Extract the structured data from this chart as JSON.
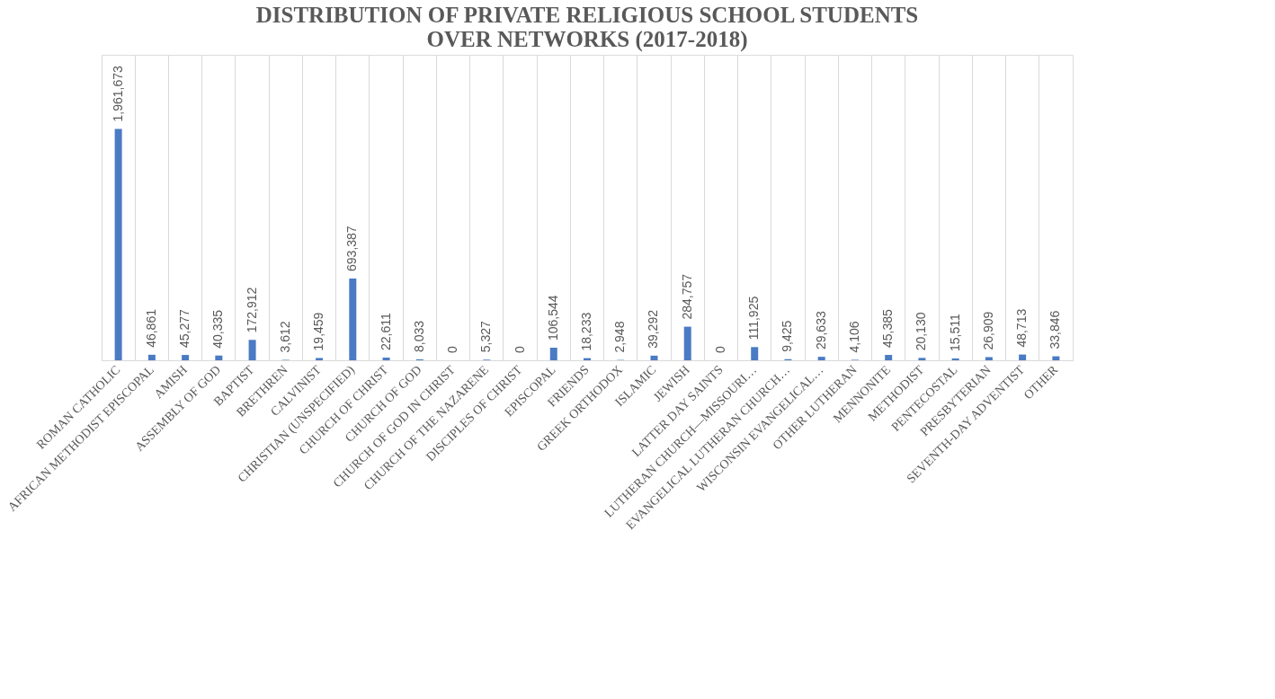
{
  "chart_data": {
    "type": "bar",
    "title": "DISTRIBUTION OF PRIVATE RELIGIOUS SCHOOL STUDENTS\nOVER NETWORKS (2017-2018)",
    "categories": [
      "ROMAN CATHOLIC",
      "AFRICAN METHODIST EPISCOPAL",
      "AMISH",
      "ASSEMBLY OF GOD",
      "BAPTIST",
      "BRETHREN",
      "CALVINIST",
      "CHRISTIAN (UNSPECIFIED)",
      "CHURCH OF CHRIST",
      "CHURCH OF GOD",
      "CHURCH OF GOD IN CHRIST",
      "CHURCH OF THE NAZARENE",
      "DISCIPLES OF CHRIST",
      "EPISCOPAL",
      "FRIENDS",
      "GREEK ORTHODOX",
      "ISLAMIC",
      "JEWISH",
      "LATTER DAY SAINTS",
      "LUTHERAN CHURCH—MISSOURI…",
      "EVANGELICAL LUTHERAN CHURCH…",
      "WISCONSIN EVANGELICAL…",
      "OTHER LUTHERAN",
      "MENNONITE",
      "METHODIST",
      "PENTECOSTAL",
      "PRESBYTERIAN",
      "SEVENTH-DAY ADVENTIST",
      "OTHER"
    ],
    "values": [
      1961673,
      46861,
      45277,
      40335,
      172912,
      3612,
      19459,
      693387,
      22611,
      8033,
      0,
      5327,
      0,
      106544,
      18233,
      2948,
      39292,
      284757,
      0,
      111925,
      9425,
      29633,
      4106,
      45385,
      20130,
      15511,
      26909,
      48713,
      33846
    ],
    "value_labels": [
      "1,961,673",
      "46,861",
      "45,277",
      "40,335",
      "172,912",
      "3,612",
      "19,459",
      "693,387",
      "22,611",
      "8,033",
      "0",
      "5,327",
      "0",
      "106,544",
      "18,233",
      "2,948",
      "39,292",
      "284,757",
      "0",
      "111,925",
      "9,425",
      "29,633",
      "4,106",
      "45,385",
      "20,130",
      "15,511",
      "26,909",
      "48,713",
      "33,846"
    ],
    "color": "#4a7bc4",
    "grid": "x",
    "tick_labels": "x"
  }
}
